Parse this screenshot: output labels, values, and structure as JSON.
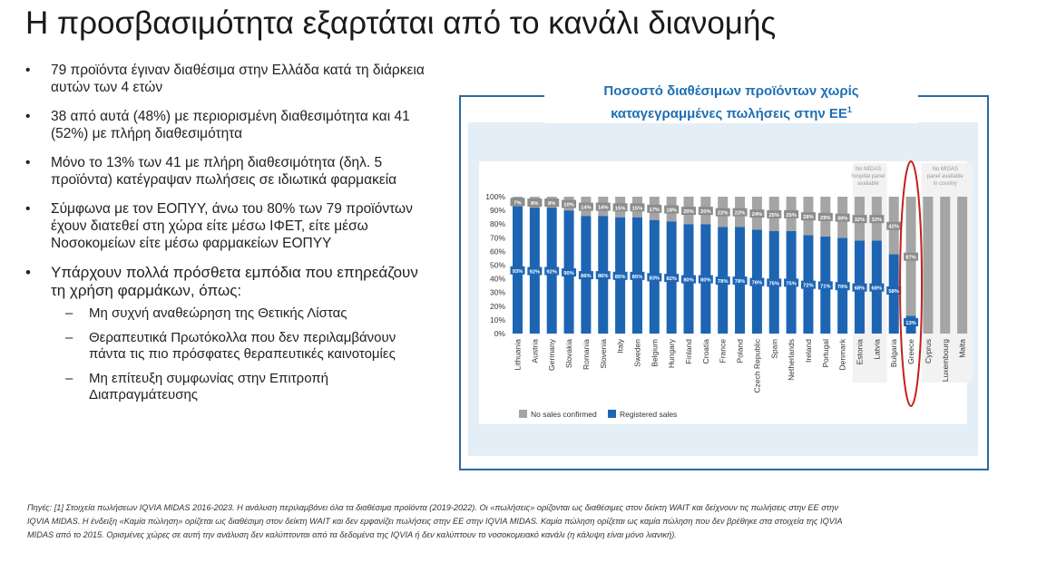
{
  "title": "Η προσβασιμότητα εξαρτάται από το κανάλι διανομής",
  "bullets": [
    "79 προϊόντα έγιναν διαθέσιμα στην Ελλάδα κατά τη διάρκεια αυτών των 4 ετών",
    "38 από αυτά (48%) με περιορισμένη διαθεσιμότητα και 41 (52%) με πλήρη διαθεσιμότητα",
    "Μόνο το 13% των 41 με πλήρη διαθεσιμότητα (δηλ. 5 προϊόντα) κατέγραψαν πωλήσεις σε ιδιωτικά φαρμακεία",
    "Σύμφωνα με τον ΕΟΠΥΥ, άνω του 80% των 79 προϊόντων έχουν διατεθεί στη χώρα είτε μέσω ΙΦΕΤ, είτε μέσω Νοσοκομείων είτε μέσω φαρμακείων ΕΟΠΥΥ",
    "Υπάρχουν πολλά πρόσθετα εμπόδια που επηρεάζουν τη χρήση φαρμάκων, όπως:"
  ],
  "sub_bullets": [
    "Μη συχνή αναθεώρηση της Θετικής Λίστας",
    "Θεραπευτικά Πρωτόκολλα που δεν περιλαμβάνουν πάντα τις πιο πρόσφατες θεραπευτικές καινοτομίες",
    "Μη επίτευξη συμφωνίας στην Επιτροπή Διαπραγμάτευσης"
  ],
  "bullet_symbol": "•",
  "dash_symbol": "–",
  "chart_title_line1": "Ποσοστό διαθέσιμων προϊόντων χωρίς",
  "chart_title_line2": "καταγεγραμμένες πωλήσεις στην ΕΕ",
  "chart_title_sup": "1",
  "chart_data": {
    "type": "bar",
    "stacked": true,
    "categories": [
      "Lithuania",
      "Austria",
      "Germany",
      "Slovakia",
      "Romania",
      "Slovenia",
      "Italy",
      "Sweden",
      "Belgium",
      "Hungary",
      "Finland",
      "Croatia",
      "France",
      "Poland",
      "Czech Republic",
      "Spain",
      "Netherlands",
      "Ireland",
      "Portugal",
      "Denmark",
      "Estonia",
      "Latvia",
      "Bulgaria",
      "Greece",
      "Cyprus",
      "Luxembourg",
      "Malta"
    ],
    "series": [
      {
        "name": "Registered sales",
        "color": "#1d65b3",
        "values": [
          93,
          92,
          92,
          90,
          86,
          86,
          85,
          85,
          83,
          82,
          80,
          80,
          78,
          78,
          76,
          75,
          75,
          72,
          71,
          70,
          68,
          68,
          58,
          13,
          null,
          null,
          null
        ],
        "labels": [
          "93%",
          "92%",
          "92%",
          "90%",
          "86%",
          "86%",
          "85%",
          "85%",
          "83%",
          "82%",
          "80%",
          "80%",
          "78%",
          "78%",
          "76%",
          "75%",
          "75%",
          "72%",
          "71%",
          "70%",
          "68%",
          "68%",
          "58%",
          "13%",
          "",
          "",
          ""
        ]
      },
      {
        "name": "No sales confirmed",
        "color": "#a5a5a5",
        "values": [
          7,
          8,
          8,
          10,
          14,
          14,
          15,
          15,
          17,
          18,
          20,
          20,
          22,
          22,
          24,
          25,
          25,
          28,
          29,
          30,
          32,
          32,
          42,
          87,
          100,
          100,
          100
        ],
        "labels": [
          "7%",
          "8%",
          "8%",
          "10%",
          "14%",
          "14%",
          "15%",
          "15%",
          "17%",
          "18%",
          "20%",
          "20%",
          "22%",
          "22%",
          "24%",
          "25%",
          "25%",
          "28%",
          "29%",
          "30%",
          "32%",
          "32%",
          "42%",
          "87%",
          "",
          "",
          ""
        ]
      }
    ],
    "yticks": [
      "0%",
      "10%",
      "20%",
      "30%",
      "40%",
      "50%",
      "60%",
      "70%",
      "80%",
      "90%",
      "100%"
    ],
    "ylim": [
      0,
      100
    ],
    "legend": [
      "No sales confirmed",
      "Registered sales"
    ],
    "legend_position": "bottom-left",
    "annotations": {
      "no_hospital_panel": [
        "No MIDAS",
        "hospital panel",
        "available"
      ],
      "no_country_panel": [
        "No MIDAS",
        "panel available",
        "in country"
      ],
      "highlighted": "Greece"
    }
  },
  "source_text": "Πηγές: [1] Στοιχεία πωλήσεων IQVIA MIDAS 2016-2023. Η ανάλυση περιλαμβάνει όλα τα διαθέσιμα προϊόντα (2019-2022). Οι «πωλήσεις» ορίζονται ως διαθέσιμες στον δείκτη WAIT και δείχνουν τις πωλήσεις στην ΕΕ στην IQVIA MIDAS. Η ένδειξη «Καμία πώληση» ορίζεται ως διαθέσιμη στον δείκτη WAIT και δεν εμφανίζει πωλήσεις στην ΕΕ στην IQVIA MIDAS. Καμία πώληση ορίζεται ως καμία πώληση που δεν βρέθηκε στα στοιχεία της IQVIA MIDAS από το 2015. Ορισμένες χώρες σε αυτή την ανάλυση δεν καλύπτονται από τα δεδομένα της IQVIA ή δεν καλύπτουν το νοσοκομειακό κανάλι (η κάλυψη είναι μόνο λιανική)."
}
